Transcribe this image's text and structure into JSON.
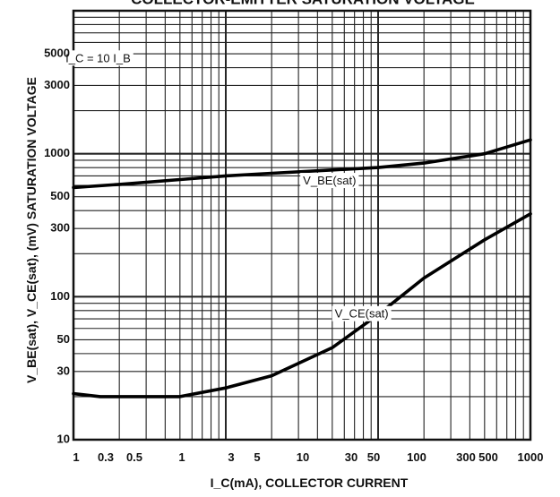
{
  "chart_data": {
    "type": "line",
    "title": "COLLECTOR-EMITTER SATURATION VOLTAGE",
    "xlabel": "I_C(mA), COLLECTOR CURRENT",
    "ylabel": "V_BE(sat), V_CE(sat), (mV)  SATURATION VOLTAGE",
    "x_scale": "log",
    "y_scale": "log",
    "xlim": [
      1,
      1000
    ],
    "ylim": [
      10,
      10000
    ],
    "grid": true,
    "x_tick_labels": [
      "1",
      "0.3",
      "0.5",
      "1",
      "3",
      "5",
      "10",
      "30",
      "50",
      "100",
      "300",
      "500",
      "1000"
    ],
    "y_ticks": [
      10,
      30,
      50,
      100,
      300,
      500,
      1000,
      3000,
      5000
    ],
    "annotations": [
      {
        "text": "I_C = 10 I_B",
        "x": 1.45,
        "y": 4600
      },
      {
        "text": "V_BE(sat)",
        "x": 48,
        "y": 640
      },
      {
        "text": "V_CE(sat)",
        "x": 78,
        "y": 75
      }
    ],
    "series": [
      {
        "name": "V_BE(sat)",
        "x": [
          1,
          2,
          5,
          10,
          20,
          50,
          100,
          200,
          500,
          1000
        ],
        "y": [
          580,
          610,
          660,
          700,
          730,
          770,
          800,
          860,
          1000,
          1250
        ]
      },
      {
        "name": "V_CE(sat)",
        "x": [
          1,
          1.5,
          2,
          3,
          5,
          10,
          20,
          50,
          100,
          200,
          500,
          1000
        ],
        "y": [
          21,
          20,
          20,
          20,
          20,
          23,
          28,
          44,
          75,
          135,
          250,
          380
        ]
      }
    ]
  }
}
